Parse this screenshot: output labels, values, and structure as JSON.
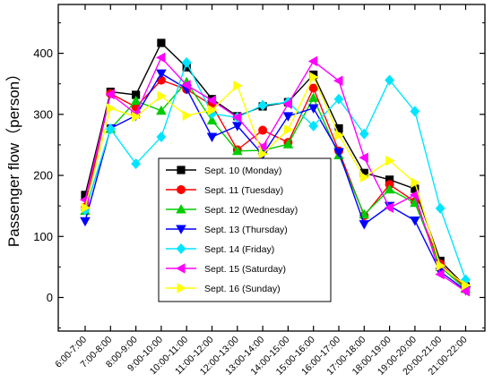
{
  "chart_data": {
    "type": "line",
    "title": "",
    "xlabel": "",
    "ylabel": "Passenger flow（person）",
    "ylim": [
      -55,
      480
    ],
    "yticks": [
      0,
      100,
      200,
      300,
      400
    ],
    "grid": false,
    "legend_position": "lower-center",
    "categories": [
      "6:00-7:00",
      "7:00-8:00",
      "8:00-9:00",
      "9:00-10:00",
      "10:00-11:00",
      "11:00-12:00",
      "12:00-13:00",
      "13:00-14:00",
      "14:00-15:00",
      "15:00-16:00",
      "16:00-17:00",
      "17:00-18:00",
      "18:00-19:00",
      "19:00-20:00",
      "20:00-21:00",
      "21:00-22:00"
    ],
    "series": [
      {
        "name": "Sept. 10 (Monday)",
        "color": "#000000",
        "marker": "square",
        "values": [
          168,
          337,
          332,
          417,
          377,
          325,
          297,
          313,
          320,
          365,
          277,
          204,
          193,
          178,
          60,
          18
        ]
      },
      {
        "name": "Sept. 11 (Tuesday)",
        "color": "#ff0000",
        "marker": "circle",
        "values": [
          148,
          334,
          312,
          356,
          341,
          315,
          242,
          274,
          254,
          343,
          240,
          134,
          185,
          157,
          55,
          16
        ]
      },
      {
        "name": "Sept. 12 (Wednesday)",
        "color": "#00cc00",
        "marker": "triangle-up",
        "values": [
          142,
          276,
          322,
          306,
          353,
          290,
          240,
          241,
          251,
          327,
          233,
          136,
          177,
          155,
          50,
          14
        ]
      },
      {
        "name": "Sept. 13 (Thursday)",
        "color": "#0000ff",
        "marker": "triangle-down",
        "values": [
          125,
          277,
          298,
          367,
          342,
          263,
          281,
          234,
          297,
          310,
          238,
          120,
          150,
          126,
          42,
          12
        ]
      },
      {
        "name": "Sept. 14 (Friday)",
        "color": "#00e5ff",
        "marker": "diamond",
        "values": [
          143,
          276,
          219,
          263,
          385,
          301,
          295,
          315,
          320,
          281,
          325,
          268,
          356,
          305,
          146,
          29
        ]
      },
      {
        "name": "Sept. 15 (Saturday)",
        "color": "#ff00ff",
        "marker": "triangle-left",
        "values": [
          160,
          333,
          301,
          393,
          348,
          323,
          295,
          247,
          317,
          387,
          355,
          229,
          147,
          168,
          38,
          10
        ]
      },
      {
        "name": "Sept. 16 (Sunday)",
        "color": "#ffff00",
        "marker": "triangle-right",
        "values": [
          147,
          310,
          296,
          330,
          298,
          307,
          347,
          235,
          275,
          361,
          266,
          197,
          224,
          188,
          52,
          20
        ]
      }
    ]
  }
}
